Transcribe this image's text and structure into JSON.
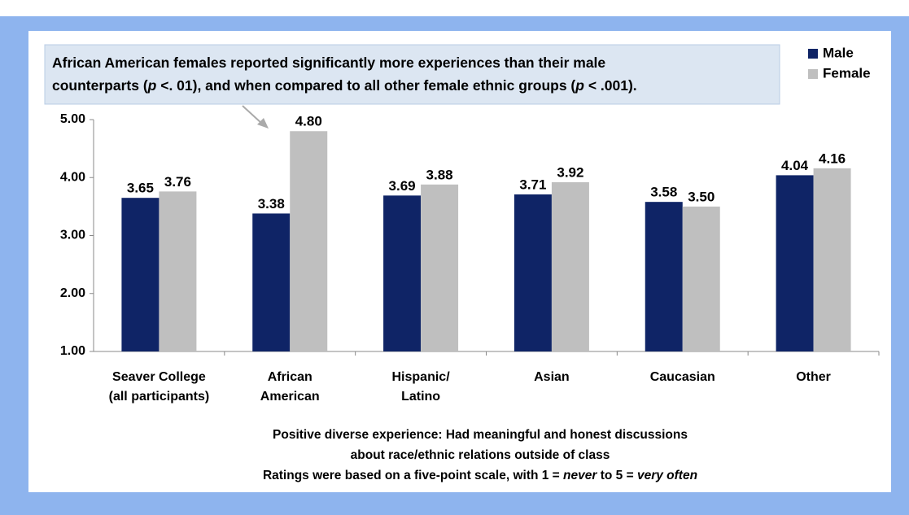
{
  "chart_data": {
    "type": "bar",
    "annotation": [
      [
        "African American females reported significantly more experiences than their male"
      ],
      [
        "counterparts (",
        "p",
        " <. 01), and when compared to all other female ethnic groups (",
        "p",
        " < .001)."
      ]
    ],
    "x_label": [
      [
        "Positive diverse experience: Had meaningful and honest discussions"
      ],
      [
        "about race/ethnic relations outside of class"
      ],
      [
        "Ratings were based on a five-point scale, with 1 = ",
        "never",
        " to 5 = ",
        "very often"
      ]
    ],
    "categories": [
      [
        "Seaver College",
        "(all participants)"
      ],
      [
        "African",
        "American"
      ],
      [
        "Hispanic/",
        "Latino"
      ],
      [
        "Asian"
      ],
      [
        "Caucasian"
      ],
      [
        "Other"
      ]
    ],
    "series": [
      {
        "name": "Male",
        "color": "#0f2466",
        "values": [
          3.65,
          3.38,
          3.69,
          3.71,
          3.58,
          4.04
        ],
        "value_labels": [
          "3.65",
          "3.38",
          "3.69",
          "3.71",
          "3.58",
          "4.04"
        ]
      },
      {
        "name": "Female",
        "color": "#bfbfbf",
        "values": [
          3.76,
          4.8,
          3.88,
          3.92,
          3.5,
          4.16
        ],
        "value_labels": [
          "3.76",
          "4.80",
          "3.88",
          "3.92",
          "3.50",
          "4.16"
        ]
      }
    ],
    "ylim": [
      1,
      5
    ],
    "yticks": [
      {
        "value": 1,
        "label": "1.00"
      },
      {
        "value": 2,
        "label": "2.00"
      },
      {
        "value": 3,
        "label": "3.00"
      },
      {
        "value": 4,
        "label": "4.00"
      },
      {
        "value": 5,
        "label": "5.00"
      }
    ],
    "grid": false,
    "legend": "top-right"
  }
}
